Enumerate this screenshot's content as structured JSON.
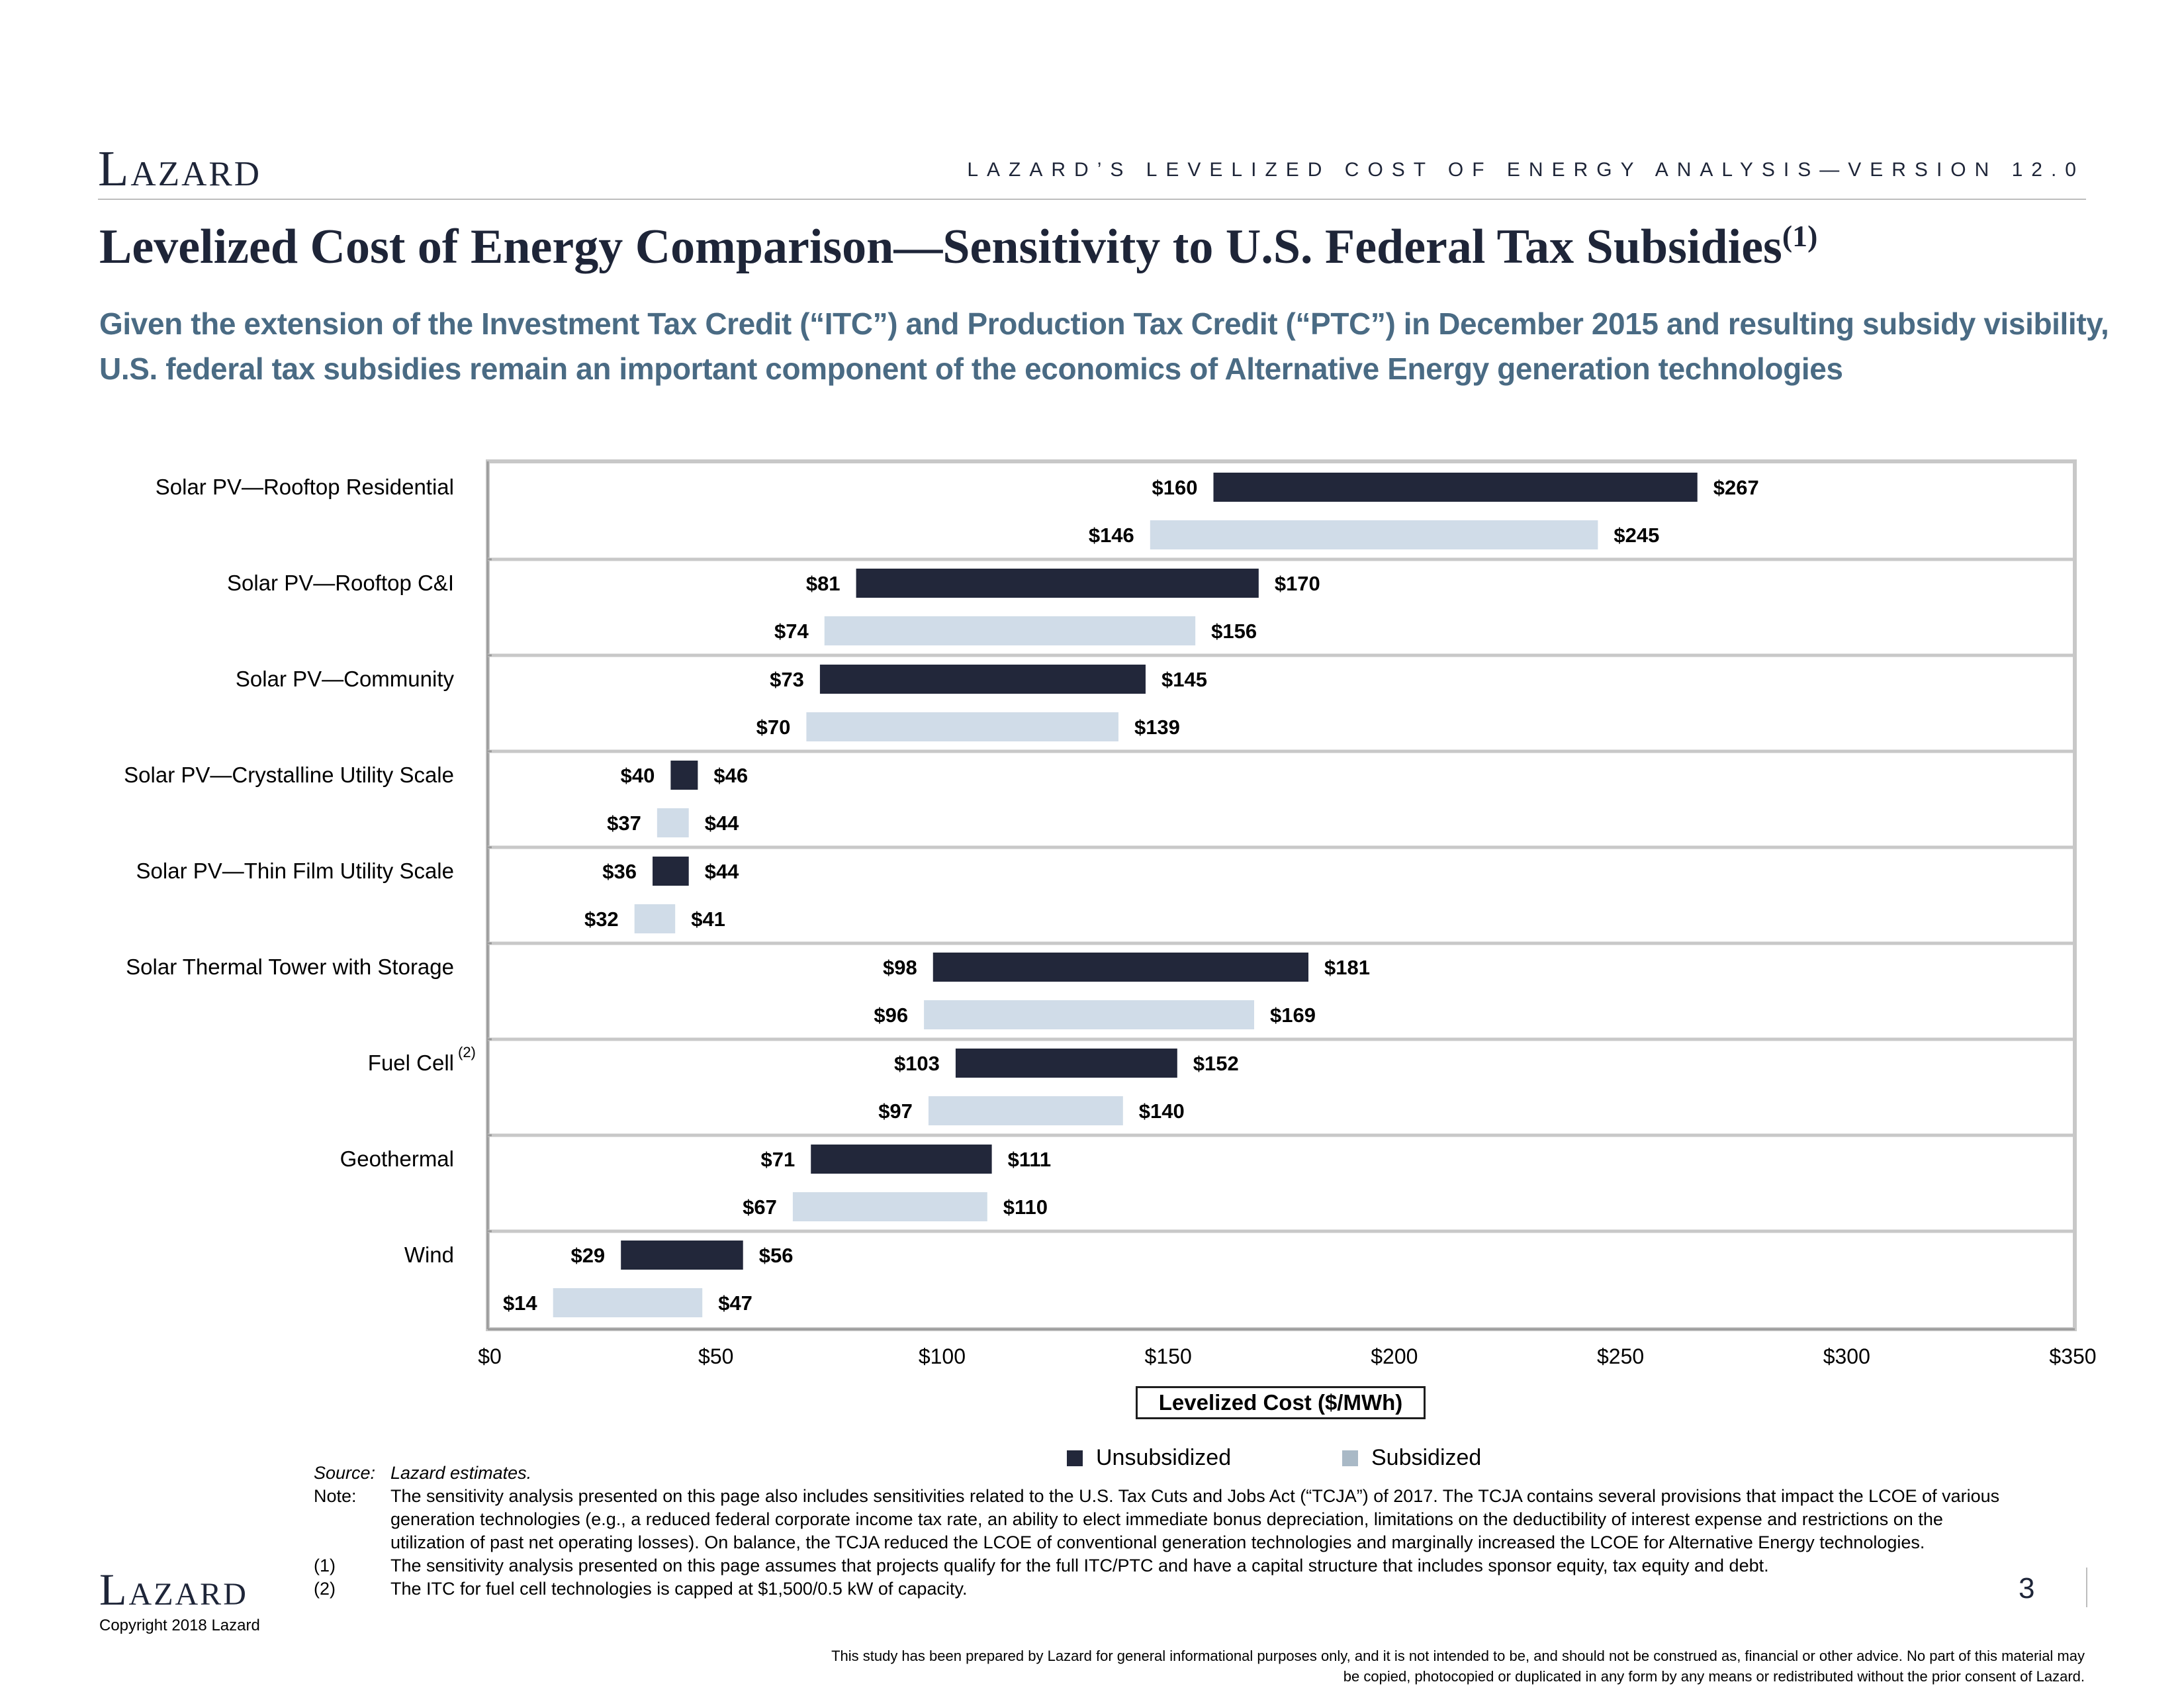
{
  "header": {
    "logo_text": "Lazard",
    "version_text": "LAZARD’S LEVELIZED COST OF ENERGY ANALYSIS—VERSION 12.0",
    "title": "Levelized Cost of Energy Comparison—Sensitivity to U.S. Federal Tax Subsidies",
    "title_footnote": "(1)",
    "subtitle_line1": "Given the extension of the Investment Tax Credit (“ITC”) and Production Tax Credit (“PTC”) in December 2015 and resulting subsidy visibility,",
    "subtitle_line2": "U.S. federal tax subsidies remain an important component of the economics of Alternative Energy generation technologies"
  },
  "chart_data": {
    "type": "bar",
    "orientation": "horizontal-floating-range",
    "xlabel": "Levelized Cost ($/MWh)",
    "xlim": [
      0,
      350
    ],
    "x_ticks": [
      "$0",
      "$50",
      "$100",
      "$150",
      "$200",
      "$250",
      "$300",
      "$350"
    ],
    "x_tick_values": [
      0,
      50,
      100,
      150,
      200,
      250,
      300,
      350
    ],
    "categories": [
      {
        "label": "Solar PV—Rooftop Residential",
        "footnote": ""
      },
      {
        "label": "Solar PV—Rooftop C&I",
        "footnote": ""
      },
      {
        "label": "Solar PV—Community",
        "footnote": ""
      },
      {
        "label": "Solar PV—Crystalline Utility Scale",
        "footnote": ""
      },
      {
        "label": "Solar PV—Thin Film Utility Scale",
        "footnote": ""
      },
      {
        "label": "Solar Thermal Tower with Storage",
        "footnote": ""
      },
      {
        "label": "Fuel Cell",
        "footnote": "(2)"
      },
      {
        "label": "Geothermal",
        "footnote": ""
      },
      {
        "label": "Wind",
        "footnote": ""
      }
    ],
    "series": [
      {
        "name": "Unsubsidized",
        "color": "#22273a",
        "low": [
          160,
          81,
          73,
          40,
          36,
          98,
          103,
          71,
          29
        ],
        "high": [
          267,
          170,
          145,
          46,
          44,
          181,
          152,
          111,
          56
        ],
        "low_labels": [
          "$160",
          "$81",
          "$73",
          "$40",
          "$36",
          "$98",
          "$103",
          "$71",
          "$29"
        ],
        "high_labels": [
          "$267",
          "$170",
          "$145",
          "$46",
          "$44",
          "$181",
          "$152",
          "$111",
          "$56"
        ]
      },
      {
        "name": "Subsidized",
        "color": "#d0dce8",
        "low": [
          146,
          74,
          70,
          37,
          32,
          96,
          97,
          67,
          14
        ],
        "high": [
          245,
          156,
          139,
          44,
          41,
          169,
          140,
          110,
          47
        ],
        "low_labels": [
          "$146",
          "$74",
          "$70",
          "$37",
          "$32",
          "$96",
          "$97",
          "$67",
          "$14"
        ],
        "high_labels": [
          "$245",
          "$156",
          "$139",
          "$44",
          "$41",
          "$169",
          "$140",
          "$110",
          "$47"
        ]
      }
    ],
    "legend_placement": "bottom",
    "legend": [
      {
        "name": "Unsubsidized",
        "color": "#22273a"
      },
      {
        "name": "Subsidized",
        "color": "#a9b9c6"
      }
    ]
  },
  "notes": {
    "source_key": "Source:",
    "source_text": "Lazard estimates.",
    "note_key": "Note:",
    "note_text": "The sensitivity analysis presented on this page also includes sensitivities related to the U.S. Tax Cuts and Jobs Act (“TCJA”) of 2017. The TCJA contains several provisions that impact the LCOE of various generation technologies (e.g., a reduced federal corporate income tax rate, an ability to elect immediate bonus depreciation, limitations on the deductibility of interest expense and restrictions on the utilization of past net operating losses). On balance, the TCJA reduced the LCOE of conventional generation technologies and marginally increased the LCOE for Alternative Energy technologies.",
    "fn1_key": "(1)",
    "fn1_text": "The sensitivity analysis presented on this page assumes that projects qualify for the full ITC/PTC and have a capital structure that includes sponsor equity, tax equity and debt.",
    "fn2_key": "(2)",
    "fn2_text": "The ITC for fuel cell technologies is capped at $1,500/0.5 kW of capacity."
  },
  "footer": {
    "logo_text": "Lazard",
    "copyright": "Copyright 2018 Lazard",
    "page_number": "3",
    "disclaimer": "This study has been prepared by Lazard for general informational purposes only, and it is not intended to be, and should not be construed as, financial or other advice. No part of this material may be copied, photocopied or duplicated in any form by any means or redistributed without the prior consent of Lazard."
  }
}
